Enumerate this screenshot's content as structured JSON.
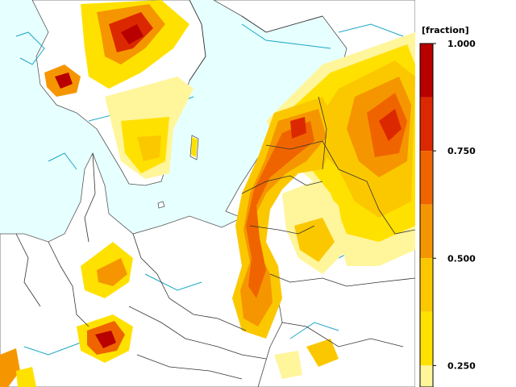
{
  "legend": {
    "unit": "[fraction]",
    "tick_labels": [
      "1.000",
      "0.750",
      "0.500",
      "0.250"
    ],
    "tick_values": [
      1.0,
      0.75,
      0.5,
      0.25
    ],
    "bands": [
      {
        "from": 0.875,
        "to": 1.0,
        "color": "#b80000"
      },
      {
        "from": 0.75,
        "to": 0.875,
        "color": "#dc2800"
      },
      {
        "from": 0.625,
        "to": 0.75,
        "color": "#f06400"
      },
      {
        "from": 0.5,
        "to": 0.625,
        "color": "#f59600"
      },
      {
        "from": 0.375,
        "to": 0.5,
        "color": "#fbc800"
      },
      {
        "from": 0.25,
        "to": 0.375,
        "color": "#ffe100"
      },
      {
        "from": 0.2,
        "to": 0.25,
        "color": "#fff59b"
      }
    ]
  },
  "map": {
    "sea_color": "#e6ffff",
    "land_color": "#ffffff",
    "border_color": "#333333",
    "isoline_color": "#1ca6c6"
  }
}
